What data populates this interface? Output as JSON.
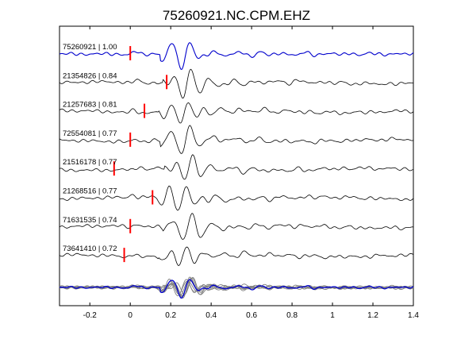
{
  "chart_data": {
    "type": "line",
    "title": "75260921.NC.CPM.EHZ",
    "xlabel": "",
    "ylabel": "",
    "xlim": [
      -0.35,
      1.4
    ],
    "x_ticks": [
      -0.2,
      0,
      0.2,
      0.4,
      0.6,
      0.8,
      1,
      1.2,
      1.4
    ],
    "x_tick_labels": [
      "-0.2",
      "0",
      "0.2",
      "0.4",
      "0.6",
      "0.8",
      "1",
      "1.2",
      "1.4"
    ],
    "grid": false,
    "colors": {
      "reference": "#0000cc",
      "trace": "#000000",
      "marker": "#ff0000",
      "stack": "#808080"
    },
    "series": [
      {
        "name": "75260921 | 1.00",
        "event_id": "75260921",
        "correlation": 1.0,
        "pick_time": 0.0,
        "shift": 0.0,
        "reference": true
      },
      {
        "name": "21354826 | 0.84",
        "event_id": "21354826",
        "correlation": 0.84,
        "pick_time": 0.18,
        "shift": 0.01,
        "reference": false
      },
      {
        "name": "21257683 | 0.81",
        "event_id": "21257683",
        "correlation": 0.81,
        "pick_time": 0.07,
        "shift": -0.01,
        "reference": false
      },
      {
        "name": "72554081 | 0.77",
        "event_id": "72554081",
        "correlation": 0.77,
        "pick_time": 0.0,
        "shift": 0.0,
        "reference": false
      },
      {
        "name": "21516178 | 0.77",
        "event_id": "21516178",
        "correlation": 0.77,
        "pick_time": -0.08,
        "shift": 0.02,
        "reference": false
      },
      {
        "name": "21268516 | 0.77",
        "event_id": "21268516",
        "correlation": 0.77,
        "pick_time": 0.11,
        "shift": -0.02,
        "reference": false
      },
      {
        "name": "71631535 | 0.74",
        "event_id": "71631535",
        "correlation": 0.74,
        "pick_time": 0.0,
        "shift": 0.01,
        "reference": false
      },
      {
        "name": "73641410 | 0.72",
        "event_id": "73641410",
        "correlation": 0.72,
        "pick_time": -0.03,
        "shift": -0.01,
        "reference": false
      }
    ]
  }
}
